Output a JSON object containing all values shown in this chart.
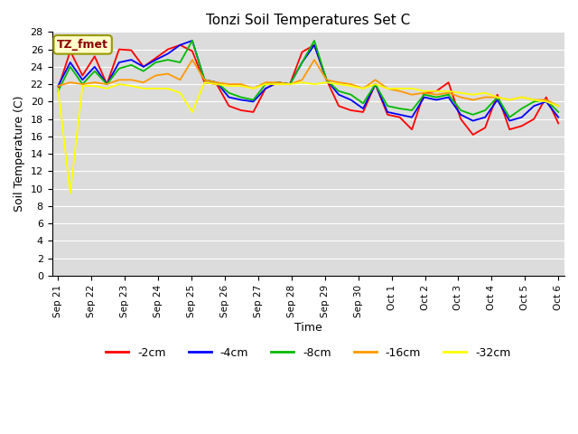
{
  "title": "Tonzi Soil Temperatures Set C",
  "xlabel": "Time",
  "ylabel": "Soil Temperature (C)",
  "ylim": [
    0,
    28
  ],
  "yticks": [
    0,
    2,
    4,
    6,
    8,
    10,
    12,
    14,
    16,
    18,
    20,
    22,
    24,
    26,
    28
  ],
  "x_labels": [
    "Sep 21",
    "Sep 22",
    "Sep 23",
    "Sep 24",
    "Sep 25",
    "Sep 26",
    "Sep 27",
    "Sep 28",
    "Sep 29",
    "Sep 30",
    "Oct 1",
    "Oct 2",
    "Oct 3",
    "Oct 4",
    "Oct 5",
    "Oct 6"
  ],
  "annotation_label": "TZ_fmet",
  "background_color": "#dcdcdc",
  "series": [
    {
      "label": "-2cm",
      "color": "#ff0000",
      "data": [
        21.5,
        25.8,
        23.0,
        25.2,
        22.0,
        26.0,
        25.9,
        24.0,
        25.0,
        26.0,
        26.5,
        25.8,
        22.2,
        22.0,
        19.5,
        19.0,
        18.8,
        21.5,
        22.2,
        22.0,
        25.7,
        26.5,
        22.5,
        19.5,
        19.0,
        18.8,
        22.0,
        18.5,
        18.2,
        16.8,
        21.0,
        21.2,
        22.2,
        18.0,
        16.2,
        17.0,
        20.8,
        16.8,
        17.2,
        18.0,
        20.5,
        17.5
      ]
    },
    {
      "label": "-4cm",
      "color": "#0000ff",
      "data": [
        21.8,
        24.5,
        22.5,
        24.0,
        22.0,
        24.5,
        24.8,
        24.0,
        24.8,
        25.5,
        26.5,
        27.0,
        22.5,
        22.2,
        20.5,
        20.2,
        20.0,
        21.5,
        22.2,
        22.0,
        24.5,
        26.5,
        22.5,
        20.8,
        20.2,
        19.2,
        22.0,
        18.8,
        18.5,
        18.2,
        20.5,
        20.2,
        20.5,
        18.5,
        17.8,
        18.2,
        20.2,
        17.8,
        18.2,
        19.5,
        20.0,
        18.2
      ]
    },
    {
      "label": "-8cm",
      "color": "#00bb00",
      "data": [
        21.2,
        24.0,
        22.0,
        23.5,
        22.0,
        23.8,
        24.2,
        23.5,
        24.5,
        24.8,
        24.5,
        27.0,
        22.5,
        22.2,
        21.0,
        20.5,
        20.2,
        22.0,
        22.2,
        22.0,
        24.5,
        27.0,
        22.5,
        21.2,
        20.8,
        19.8,
        22.0,
        19.5,
        19.2,
        19.0,
        20.8,
        20.5,
        20.8,
        19.0,
        18.5,
        19.0,
        20.5,
        18.2,
        19.2,
        20.0,
        20.2,
        18.8
      ]
    },
    {
      "label": "-16cm",
      "color": "#ff9900",
      "data": [
        21.8,
        22.2,
        22.0,
        22.2,
        22.0,
        22.5,
        22.5,
        22.2,
        23.0,
        23.2,
        22.5,
        24.8,
        22.5,
        22.2,
        22.0,
        22.0,
        21.5,
        22.2,
        22.2,
        22.0,
        22.5,
        24.8,
        22.5,
        22.2,
        22.0,
        21.5,
        22.5,
        21.5,
        21.2,
        20.8,
        21.0,
        20.8,
        21.0,
        20.5,
        20.2,
        20.5,
        20.5,
        20.2,
        20.5,
        20.2,
        20.2,
        19.5
      ]
    },
    {
      "label": "-32cm",
      "color": "#ffff00",
      "data": [
        21.5,
        9.5,
        21.8,
        21.8,
        21.5,
        22.0,
        21.8,
        21.5,
        21.5,
        21.5,
        21.0,
        18.8,
        22.2,
        22.0,
        21.8,
        21.8,
        21.5,
        22.0,
        22.0,
        22.0,
        22.2,
        22.0,
        22.2,
        22.0,
        21.8,
        21.5,
        22.0,
        21.5,
        21.5,
        21.5,
        21.2,
        21.2,
        21.2,
        21.0,
        20.8,
        21.0,
        20.5,
        20.2,
        20.5,
        20.2,
        20.0,
        19.5
      ]
    }
  ],
  "n_labels": 16,
  "n_points": 42
}
